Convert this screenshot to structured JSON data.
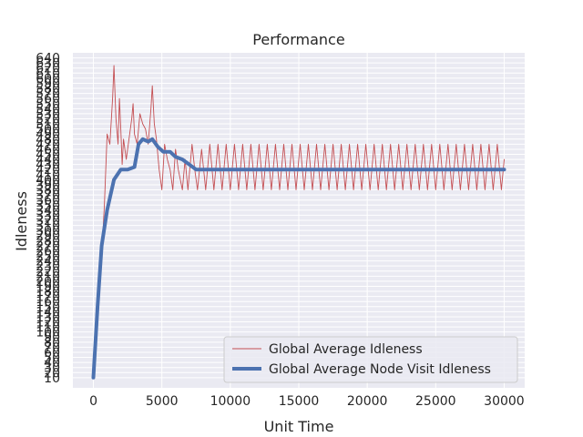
{
  "chart_data": {
    "type": "line",
    "title": "Performance",
    "xlabel": "Unit Time",
    "ylabel": "Idleness",
    "xlim": [
      -1500,
      31500
    ],
    "ylim": [
      -10,
      650
    ],
    "xticks": [
      0,
      5000,
      10000,
      15000,
      20000,
      25000,
      30000
    ],
    "yticks": [
      10,
      20,
      30,
      40,
      50,
      60,
      70,
      80,
      90,
      100,
      110,
      120,
      130,
      140,
      150,
      160,
      170,
      180,
      190,
      200,
      210,
      220,
      230,
      240,
      250,
      260,
      270,
      280,
      290,
      300,
      310,
      320,
      330,
      340,
      350,
      360,
      370,
      380,
      390,
      400,
      410,
      420,
      430,
      440,
      450,
      460,
      470,
      480,
      490,
      500,
      510,
      520,
      530,
      540,
      550,
      560,
      570,
      580,
      590,
      600,
      610,
      620,
      630,
      640
    ],
    "grid": true,
    "legend_position": "lower-right",
    "background": "#eaeaf2",
    "series": [
      {
        "name": "Global Average Idleness",
        "color": "#c44e52",
        "style": "thin",
        "points": [
          [
            0,
            10
          ],
          [
            300,
            130
          ],
          [
            600,
            250
          ],
          [
            800,
            350
          ],
          [
            1000,
            490
          ],
          [
            1200,
            470
          ],
          [
            1400,
            560
          ],
          [
            1500,
            625
          ],
          [
            1650,
            520
          ],
          [
            1800,
            470
          ],
          [
            1900,
            560
          ],
          [
            2000,
            500
          ],
          [
            2100,
            430
          ],
          [
            2200,
            480
          ],
          [
            2400,
            440
          ],
          [
            2600,
            480
          ],
          [
            2800,
            520
          ],
          [
            2900,
            550
          ],
          [
            3000,
            490
          ],
          [
            3200,
            470
          ],
          [
            3400,
            530
          ],
          [
            3600,
            510
          ],
          [
            3800,
            500
          ],
          [
            4000,
            470
          ],
          [
            4200,
            540
          ],
          [
            4300,
            585
          ],
          [
            4450,
            510
          ],
          [
            4600,
            480
          ],
          [
            4800,
            420
          ],
          [
            5000,
            380
          ],
          [
            5200,
            470
          ],
          [
            5400,
            440
          ],
          [
            5600,
            420
          ],
          [
            5800,
            380
          ],
          [
            6000,
            460
          ],
          [
            6200,
            420
          ],
          [
            6500,
            380
          ],
          [
            6700,
            440
          ],
          [
            6900,
            380
          ],
          [
            7200,
            470
          ],
          [
            7400,
            420
          ],
          [
            7600,
            380
          ],
          [
            7900,
            460
          ],
          [
            8200,
            380
          ],
          [
            8500,
            470
          ],
          [
            8800,
            380
          ],
          [
            9100,
            470
          ],
          [
            9400,
            380
          ],
          [
            9700,
            470
          ],
          [
            10000,
            380
          ],
          [
            10300,
            470
          ],
          [
            10600,
            380
          ],
          [
            10900,
            470
          ],
          [
            11200,
            380
          ],
          [
            11500,
            470
          ],
          [
            11800,
            380
          ],
          [
            12100,
            470
          ],
          [
            12400,
            380
          ],
          [
            12700,
            470
          ],
          [
            13000,
            380
          ],
          [
            13300,
            470
          ],
          [
            13600,
            380
          ],
          [
            13900,
            470
          ],
          [
            14200,
            380
          ],
          [
            14500,
            470
          ],
          [
            14800,
            380
          ],
          [
            15100,
            470
          ],
          [
            15400,
            380
          ],
          [
            15700,
            470
          ],
          [
            16000,
            380
          ],
          [
            16300,
            470
          ],
          [
            16600,
            380
          ],
          [
            16900,
            470
          ],
          [
            17200,
            380
          ],
          [
            17500,
            470
          ],
          [
            17800,
            380
          ],
          [
            18100,
            470
          ],
          [
            18400,
            380
          ],
          [
            18700,
            470
          ],
          [
            19000,
            380
          ],
          [
            19300,
            470
          ],
          [
            19600,
            380
          ],
          [
            19900,
            470
          ],
          [
            20200,
            380
          ],
          [
            20500,
            470
          ],
          [
            20800,
            380
          ],
          [
            21100,
            470
          ],
          [
            21400,
            380
          ],
          [
            21700,
            470
          ],
          [
            22000,
            380
          ],
          [
            22300,
            470
          ],
          [
            22600,
            380
          ],
          [
            22900,
            470
          ],
          [
            23200,
            380
          ],
          [
            23500,
            470
          ],
          [
            23800,
            380
          ],
          [
            24100,
            470
          ],
          [
            24400,
            380
          ],
          [
            24700,
            470
          ],
          [
            25000,
            380
          ],
          [
            25300,
            470
          ],
          [
            25600,
            380
          ],
          [
            25900,
            470
          ],
          [
            26200,
            380
          ],
          [
            26500,
            470
          ],
          [
            26800,
            380
          ],
          [
            27100,
            470
          ],
          [
            27400,
            380
          ],
          [
            27700,
            470
          ],
          [
            28000,
            380
          ],
          [
            28300,
            470
          ],
          [
            28600,
            380
          ],
          [
            28900,
            470
          ],
          [
            29200,
            380
          ],
          [
            29500,
            470
          ],
          [
            29800,
            380
          ],
          [
            30000,
            440
          ]
        ]
      },
      {
        "name": "Global Average Node Visit Idleness",
        "color": "#4c72b0",
        "style": "thick",
        "points": [
          [
            0,
            10
          ],
          [
            300,
            150
          ],
          [
            600,
            270
          ],
          [
            1000,
            340
          ],
          [
            1500,
            400
          ],
          [
            2000,
            420
          ],
          [
            2500,
            420
          ],
          [
            3000,
            425
          ],
          [
            3300,
            470
          ],
          [
            3600,
            480
          ],
          [
            4000,
            475
          ],
          [
            4300,
            480
          ],
          [
            4700,
            465
          ],
          [
            5100,
            455
          ],
          [
            5600,
            455
          ],
          [
            6000,
            445
          ],
          [
            6500,
            440
          ],
          [
            7000,
            430
          ],
          [
            7500,
            420
          ],
          [
            8000,
            420
          ],
          [
            10000,
            420
          ],
          [
            15000,
            420
          ],
          [
            20000,
            420
          ],
          [
            25000,
            420
          ],
          [
            28000,
            420
          ],
          [
            30000,
            420
          ]
        ]
      }
    ]
  }
}
